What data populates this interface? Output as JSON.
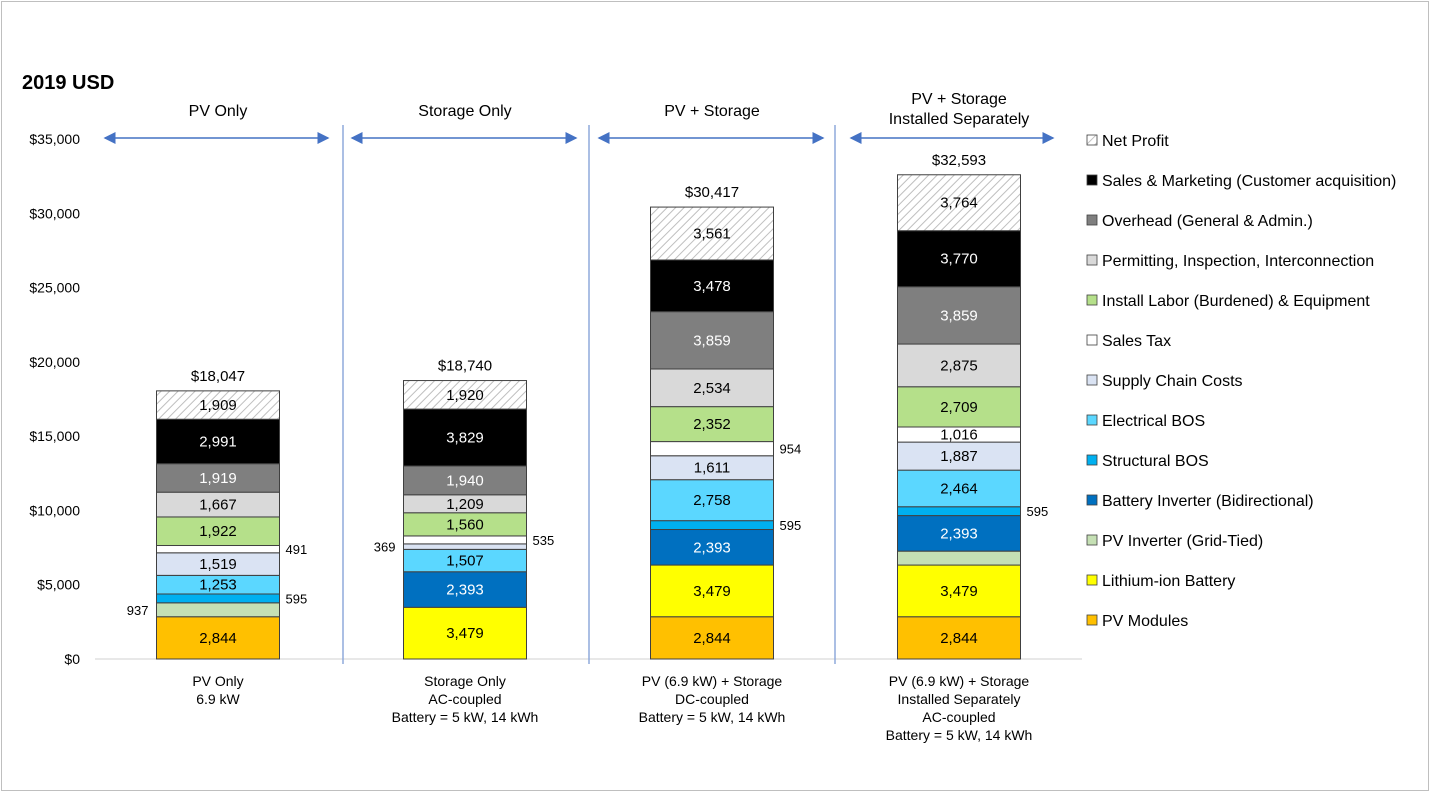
{
  "chart_data": {
    "type": "bar",
    "stacked": true,
    "title": "2019 USD",
    "ylim": [
      0,
      35000
    ],
    "yticks": [
      0,
      5000,
      10000,
      15000,
      20000,
      25000,
      30000,
      35000
    ],
    "ytick_labels": [
      "$0",
      "$5,000",
      "$10,000",
      "$15,000",
      "$20,000",
      "$25,000",
      "$30,000",
      "$35,000"
    ],
    "grid": false,
    "legend_position": "right",
    "section_headers": [
      "PV Only",
      "Storage Only",
      "PV + Storage",
      "PV + Storage\nInstalled Separately"
    ],
    "categories": [
      "PV Only\n6.9 kW",
      "Storage Only\nAC-coupled\nBattery = 5 kW, 14 kWh",
      "PV (6.9 kW) + Storage\nDC-coupled\nBattery = 5 kW, 14 kWh",
      "PV (6.9 kW) + Storage\nInstalled Separately\nAC-coupled\nBattery = 5 kW, 14 kWh"
    ],
    "totals": [
      "$18,047",
      "$18,740",
      "$30,417",
      "$32,593"
    ],
    "series": [
      {
        "name": "PV Modules",
        "color": "#FFC000",
        "values": [
          2844,
          0,
          2844,
          2844
        ],
        "labels": [
          "2,844",
          "",
          "2,844",
          "2,844"
        ]
      },
      {
        "name": "Lithium-ion Battery",
        "color": "#FFFF00",
        "values": [
          0,
          3479,
          3479,
          3479
        ],
        "labels": [
          "",
          "3,479",
          "3,479",
          "3,479"
        ]
      },
      {
        "name": "PV Inverter (Grid-Tied)",
        "color": "#C5E0B4",
        "values": [
          937,
          0,
          0,
          937
        ],
        "labels": [
          "937",
          "",
          "",
          ""
        ]
      },
      {
        "name": "Battery Inverter (Bidirectional)",
        "color": "#0070C0",
        "values": [
          0,
          2393,
          2393,
          2393
        ],
        "labels": [
          "",
          "2,393",
          "2,393",
          "2,393"
        ]
      },
      {
        "name": "Structural BOS",
        "color": "#00B0F0",
        "values": [
          595,
          0,
          595,
          595
        ],
        "labels": [
          "595",
          "",
          "595",
          "595"
        ]
      },
      {
        "name": "Electrical BOS",
        "color": "#5BD7FF",
        "values": [
          1253,
          1507,
          2758,
          2464
        ],
        "labels": [
          "1,253",
          "1,507",
          "2,758",
          "2,464"
        ]
      },
      {
        "name": "Supply Chain Costs",
        "color": "#DAE3F3",
        "values": [
          1519,
          369,
          1611,
          1887
        ],
        "labels": [
          "1,519",
          "369",
          "1,611",
          "1,887"
        ]
      },
      {
        "name": "Sales Tax",
        "color": "#FFFFFF",
        "values": [
          491,
          535,
          954,
          1016
        ],
        "labels": [
          "491",
          "535",
          "954",
          "1,016"
        ]
      },
      {
        "name": "Install Labor (Burdened) & Equipment",
        "color": "#B5E08A",
        "values": [
          1922,
          1560,
          2352,
          2709
        ],
        "labels": [
          "1,922",
          "1,560",
          "2,352",
          "2,709"
        ]
      },
      {
        "name": "Permitting, Inspection, Interconnection",
        "color": "#D9D9D9",
        "values": [
          1667,
          1209,
          2534,
          2875
        ],
        "labels": [
          "1,667",
          "1,209",
          "2,534",
          "2,875"
        ]
      },
      {
        "name": "Overhead (General & Admin.)",
        "color": "#7F7F7F",
        "values": [
          1919,
          1940,
          3859,
          3859
        ],
        "labels": [
          "1,919",
          "1,940",
          "3,859",
          "3,859"
        ]
      },
      {
        "name": "Sales & Marketing (Customer acquisition)",
        "color": "#000000",
        "values": [
          2991,
          3829,
          3478,
          3770
        ],
        "labels": [
          "2,991",
          "3,829",
          "3,478",
          "3,770"
        ]
      },
      {
        "name": "Net Profit",
        "color": "hatched",
        "values": [
          1909,
          1920,
          3561,
          3764
        ],
        "labels": [
          "1,909",
          "1,920",
          "3,561",
          "3,764"
        ]
      }
    ]
  }
}
